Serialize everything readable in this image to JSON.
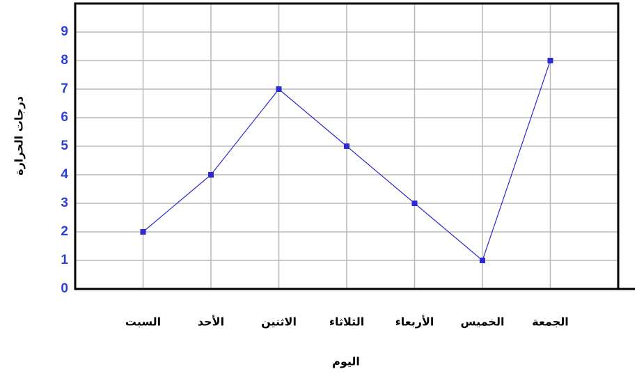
{
  "chart_data": {
    "type": "line",
    "x_label": "اليوم",
    "y_label": "درجات الحرارة",
    "categories": [
      "السبت",
      "الأحد",
      "الاثنين",
      "الثلاثاء",
      "الأربعاء",
      "الخميس",
      "الجمعة"
    ],
    "series": [
      {
        "color": "#2b2bd0",
        "values": [
          2,
          4,
          7,
          5,
          3,
          1,
          8
        ]
      }
    ],
    "ylim": [
      0,
      10
    ],
    "yticks": [
      0,
      1,
      2,
      3,
      4,
      5,
      6,
      7,
      8,
      9
    ],
    "grid": true
  }
}
